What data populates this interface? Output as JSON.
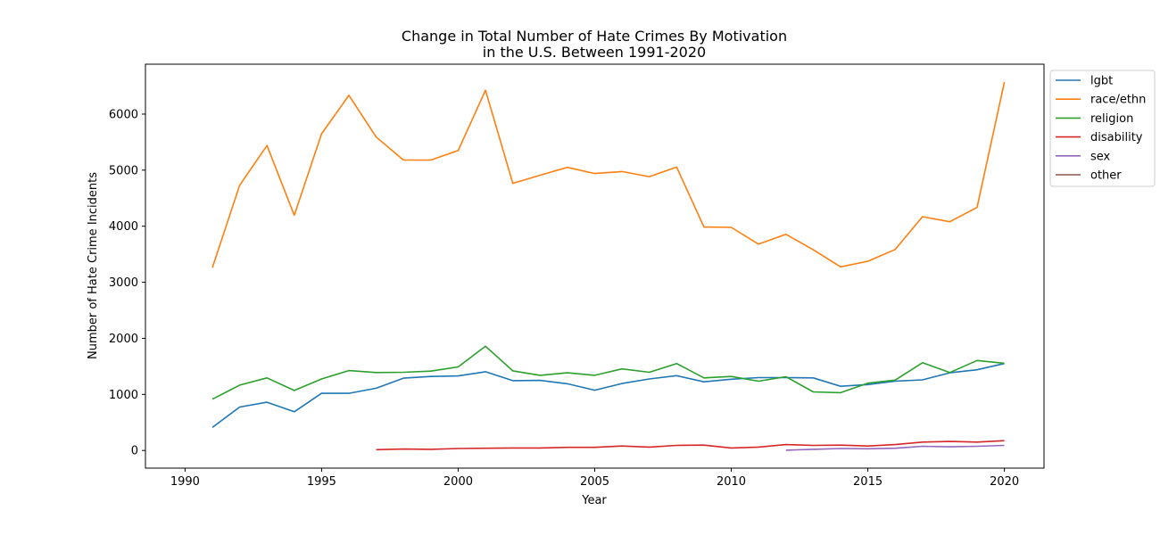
{
  "chart_data": {
    "type": "line",
    "title": [
      "Change in Total Number of Hate Crimes By Motivation",
      "in the U.S. Between 1991-2020"
    ],
    "xlabel": "Year",
    "ylabel": "Number of Hate Crime Incidents",
    "xlim": [
      1988.55,
      2021.45
    ],
    "ylim": [
      -315,
      6890
    ],
    "xticks": [
      1990,
      1995,
      2000,
      2005,
      2010,
      2015,
      2020
    ],
    "yticks": [
      0,
      1000,
      2000,
      3000,
      4000,
      5000,
      6000
    ],
    "grid": false,
    "legend_position": "outside-top-right",
    "series": [
      {
        "name": "lgbt",
        "color": "#1f77b4",
        "x": [
          1991,
          1992,
          1993,
          1994,
          1995,
          1996,
          1997,
          1998,
          1999,
          2000,
          2001,
          2002,
          2003,
          2004,
          2005,
          2006,
          2007,
          2008,
          2009,
          2010,
          2011,
          2012,
          2013,
          2014,
          2015,
          2016,
          2017,
          2018,
          2019,
          2020
        ],
        "y": [
          410,
          775,
          860,
          690,
          1020,
          1020,
          1110,
          1290,
          1320,
          1330,
          1405,
          1245,
          1250,
          1190,
          1075,
          1195,
          1275,
          1335,
          1225,
          1270,
          1300,
          1300,
          1295,
          1145,
          1175,
          1235,
          1260,
          1385,
          1440,
          1550
        ]
      },
      {
        "name": "race/ethn",
        "color": "#ff7f0e",
        "x": [
          1991,
          1992,
          1993,
          1994,
          1995,
          1996,
          1997,
          1998,
          1999,
          2000,
          2001,
          2002,
          2003,
          2004,
          2005,
          2006,
          2007,
          2008,
          2009,
          2010,
          2011,
          2012,
          2013,
          2014,
          2015,
          2016,
          2017,
          2018,
          2019,
          2020
        ],
        "y": [
          3260,
          4730,
          5440,
          4195,
          5650,
          6335,
          5590,
          5180,
          5180,
          5350,
          6425,
          4765,
          4910,
          5050,
          4940,
          4975,
          4885,
          5055,
          3985,
          3980,
          3680,
          3855,
          3580,
          3275,
          3375,
          3585,
          4170,
          4080,
          4335,
          6570
        ]
      },
      {
        "name": "religion",
        "color": "#2ca02c",
        "x": [
          1991,
          1992,
          1993,
          1994,
          1995,
          1996,
          1997,
          1998,
          1999,
          2000,
          2001,
          2002,
          2003,
          2004,
          2005,
          2006,
          2007,
          2008,
          2009,
          2010,
          2011,
          2012,
          2013,
          2014,
          2015,
          2016,
          2017,
          2018,
          2019,
          2020
        ],
        "y": [
          915,
          1165,
          1295,
          1070,
          1275,
          1425,
          1390,
          1395,
          1415,
          1490,
          1860,
          1420,
          1340,
          1385,
          1340,
          1455,
          1395,
          1550,
          1295,
          1320,
          1235,
          1315,
          1045,
          1030,
          1200,
          1255,
          1565,
          1390,
          1605,
          1555
        ]
      },
      {
        "name": "disability",
        "color": "#d62728",
        "x": [
          1997,
          1998,
          1999,
          2000,
          2001,
          2002,
          2003,
          2004,
          2005,
          2006,
          2007,
          2008,
          2009,
          2010,
          2011,
          2012,
          2013,
          2014,
          2015,
          2016,
          2017,
          2018,
          2019,
          2020
        ],
        "y": [
          15,
          25,
          20,
          35,
          40,
          45,
          45,
          55,
          55,
          80,
          60,
          90,
          95,
          45,
          60,
          105,
          90,
          95,
          80,
          105,
          150,
          160,
          150,
          175
        ]
      },
      {
        "name": "sex",
        "color": "#9467bd",
        "x": [
          2012,
          2013,
          2014,
          2015,
          2016,
          2017,
          2018,
          2019,
          2020
        ],
        "y": [
          5,
          20,
          35,
          30,
          40,
          75,
          65,
          75,
          90
        ]
      },
      {
        "name": "other",
        "color": "#8c564b",
        "x": [],
        "y": []
      }
    ]
  }
}
